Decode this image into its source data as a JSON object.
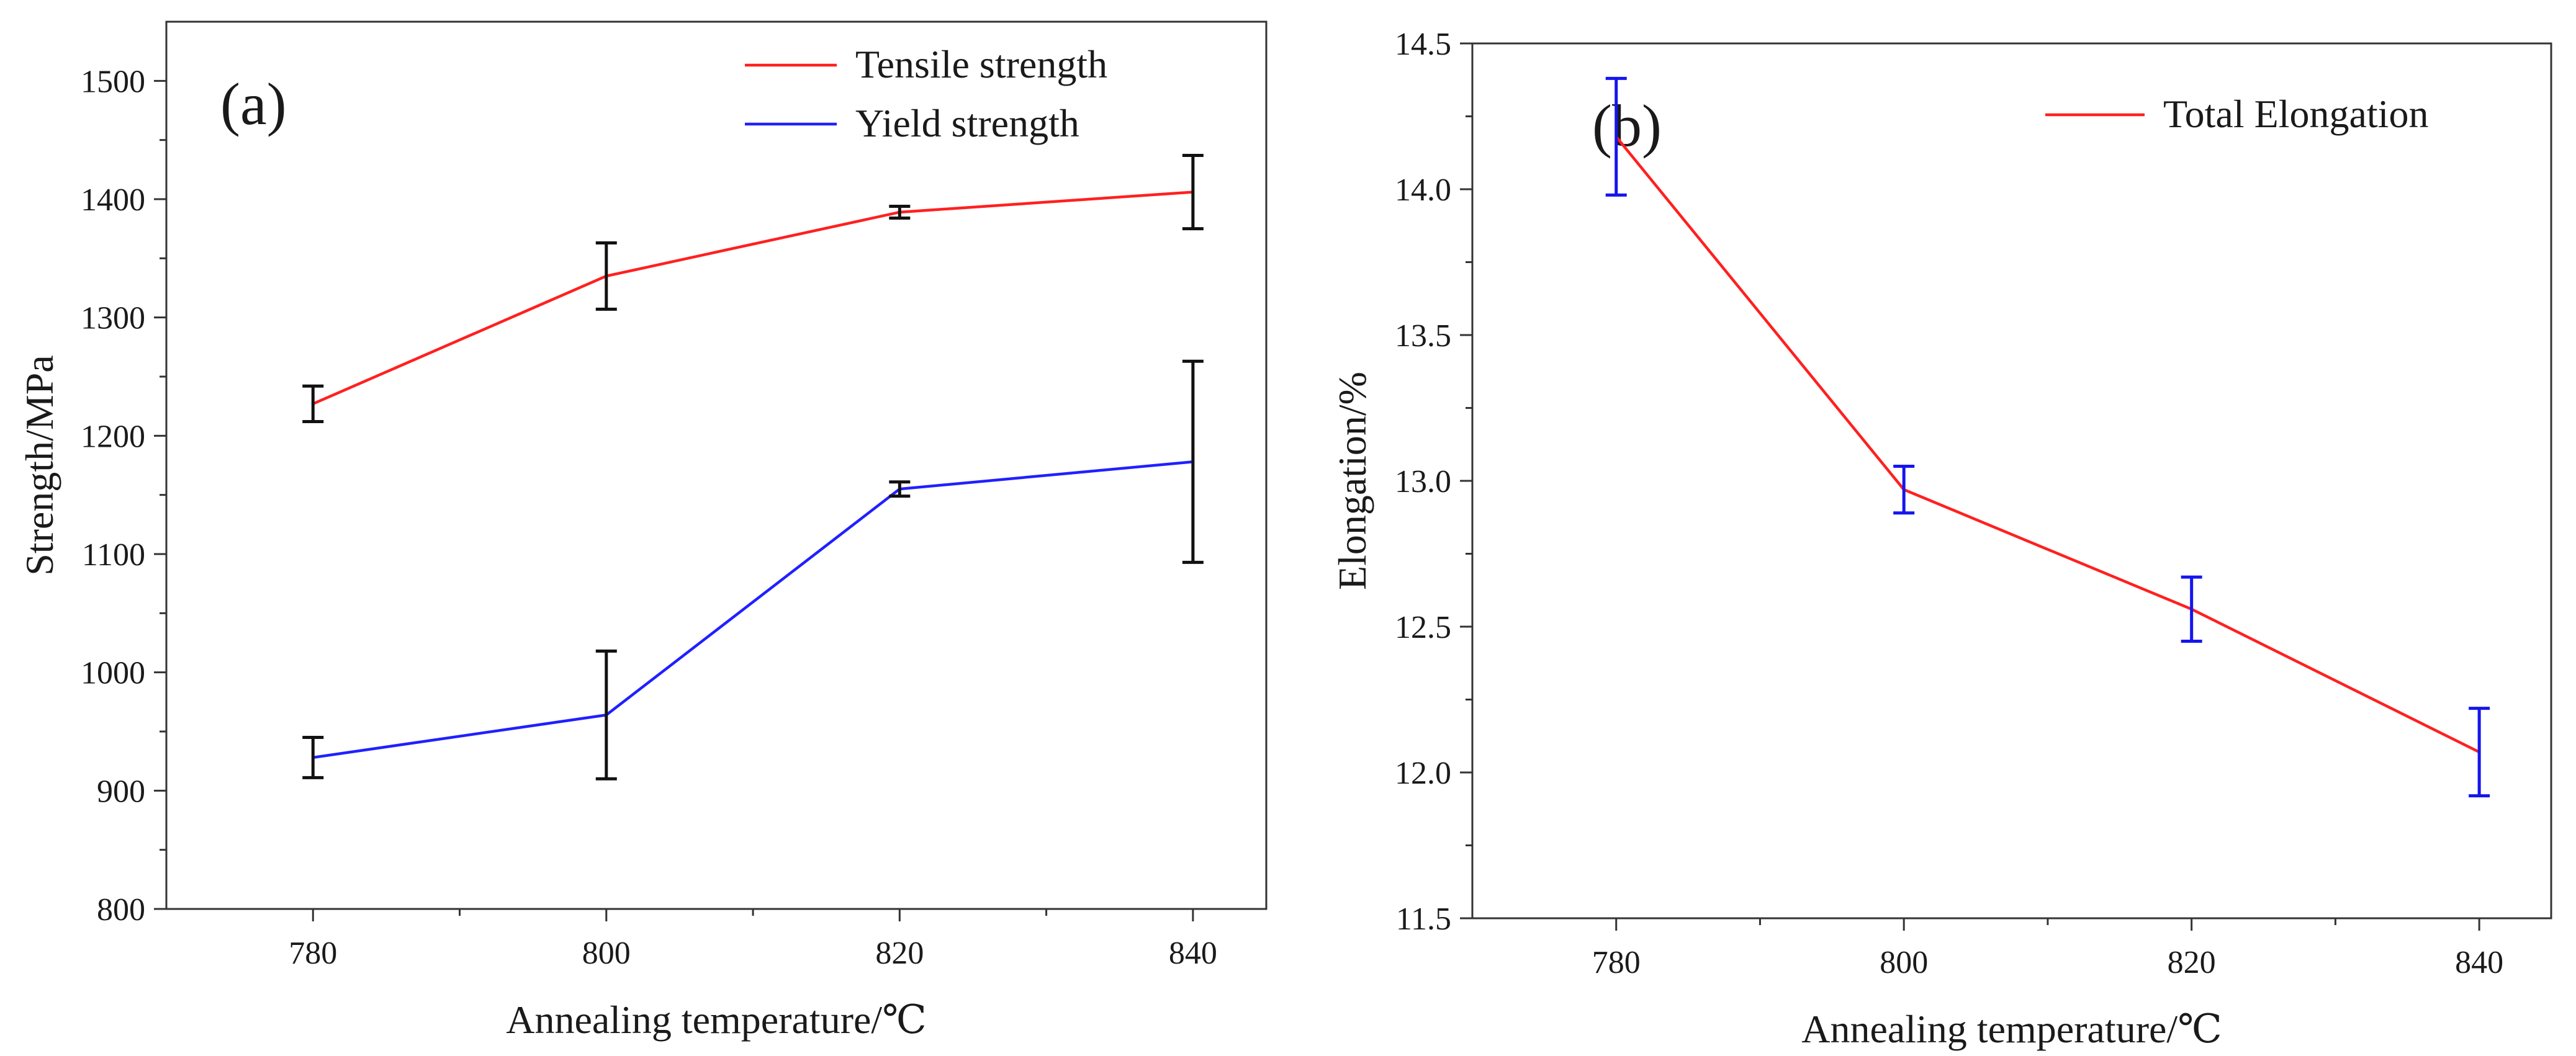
{
  "chart_data": [
    {
      "type": "line",
      "panel_label": "(a)",
      "xlabel": "Annealing temperature/℃",
      "ylabel": "Strength/MPa",
      "xlim": [
        770,
        845
      ],
      "ylim": [
        800,
        1550
      ],
      "x_ticks": [
        780,
        800,
        820,
        840
      ],
      "y_ticks": [
        800,
        900,
        1000,
        1100,
        1200,
        1300,
        1400,
        1500
      ],
      "legend_position": "top-right",
      "grid": false,
      "x": [
        780,
        800,
        820,
        840
      ],
      "series": [
        {
          "name": "Tensile strength",
          "color": "#ff2020",
          "values": [
            1227,
            1335,
            1389,
            1406
          ],
          "error": [
            15,
            28,
            5,
            31
          ],
          "error_color": "#111111"
        },
        {
          "name": "Yield strength",
          "color": "#2020ff",
          "values": [
            928,
            964,
            1155,
            1178
          ],
          "error": [
            17,
            54,
            6,
            85
          ],
          "error_color": "#111111"
        }
      ]
    },
    {
      "type": "line",
      "panel_label": "(b)",
      "xlabel": "Annealing temperature/℃",
      "ylabel": "Elongation/%",
      "xlim": [
        770,
        845
      ],
      "ylim": [
        11.5,
        14.5
      ],
      "x_ticks": [
        780,
        800,
        820,
        840
      ],
      "y_ticks": [
        "11.5",
        "12.0",
        "12.5",
        "13.0",
        "13.5",
        "14.0",
        "14.5"
      ],
      "legend_position": "top-right",
      "grid": false,
      "x": [
        780,
        800,
        820,
        840
      ],
      "series": [
        {
          "name": "Total Elongation",
          "color": "#ff2020",
          "values": [
            14.18,
            12.97,
            12.56,
            12.07
          ],
          "error": [
            0.2,
            0.08,
            0.11,
            0.15
          ],
          "error_color": "#1515ee"
        }
      ]
    }
  ]
}
